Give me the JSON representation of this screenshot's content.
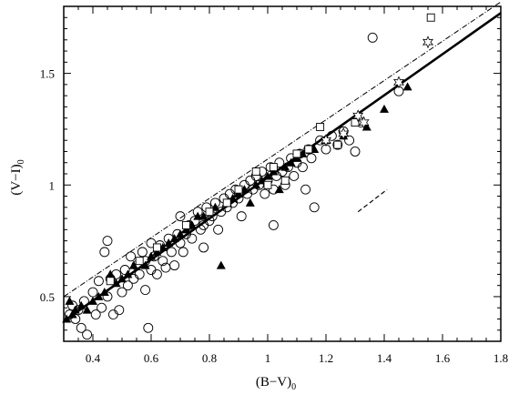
{
  "chart_data": {
    "type": "scatter",
    "title": "",
    "xlabel": "(B−V)",
    "xlabel_subscript": "0",
    "ylabel": "(V−I)",
    "ylabel_subscript": "0",
    "xlim": [
      0.3,
      1.8
    ],
    "ylim": [
      0.3,
      1.8
    ],
    "x_ticks": [
      0.4,
      0.6,
      0.8,
      1.0,
      1.2,
      1.4,
      1.6,
      1.8
    ],
    "x_tick_labels": [
      "0.4",
      "0.6",
      "0.8",
      "1",
      "1.2",
      "1.4",
      "1.6",
      "1.8"
    ],
    "y_ticks": [
      0.5,
      1.0,
      1.5
    ],
    "y_tick_labels": [
      "0.5",
      "1",
      "1.5"
    ],
    "grid": false,
    "legend": "none",
    "lines": [
      {
        "style": "solid-thick",
        "x": [
          0.3,
          1.8
        ],
        "y": [
          0.39,
          1.77
        ]
      },
      {
        "style": "dash-dot",
        "x": [
          0.3,
          1.8
        ],
        "y": [
          0.5,
          1.82
        ]
      },
      {
        "style": "dashed-short",
        "x": [
          1.31,
          1.41
        ],
        "y": [
          0.88,
          0.98
        ]
      }
    ],
    "series": [
      {
        "marker": "open-circle",
        "points": [
          [
            0.32,
            0.42
          ],
          [
            0.33,
            0.46
          ],
          [
            0.34,
            0.4
          ],
          [
            0.35,
            0.44
          ],
          [
            0.36,
            0.36
          ],
          [
            0.37,
            0.48
          ],
          [
            0.38,
            0.33
          ],
          [
            0.4,
            0.52
          ],
          [
            0.41,
            0.42
          ],
          [
            0.42,
            0.57
          ],
          [
            0.43,
            0.45
          ],
          [
            0.44,
            0.7
          ],
          [
            0.45,
            0.75
          ],
          [
            0.45,
            0.5
          ],
          [
            0.46,
            0.58
          ],
          [
            0.47,
            0.42
          ],
          [
            0.48,
            0.6
          ],
          [
            0.49,
            0.44
          ],
          [
            0.5,
            0.52
          ],
          [
            0.51,
            0.62
          ],
          [
            0.52,
            0.55
          ],
          [
            0.53,
            0.68
          ],
          [
            0.54,
            0.58
          ],
          [
            0.55,
            0.64
          ],
          [
            0.56,
            0.6
          ],
          [
            0.57,
            0.7
          ],
          [
            0.58,
            0.66
          ],
          [
            0.58,
            0.53
          ],
          [
            0.59,
            0.36
          ],
          [
            0.6,
            0.74
          ],
          [
            0.6,
            0.62
          ],
          [
            0.61,
            0.68
          ],
          [
            0.62,
            0.6
          ],
          [
            0.63,
            0.73
          ],
          [
            0.64,
            0.66
          ],
          [
            0.65,
            0.63
          ],
          [
            0.66,
            0.76
          ],
          [
            0.67,
            0.7
          ],
          [
            0.68,
            0.64
          ],
          [
            0.69,
            0.78
          ],
          [
            0.7,
            0.74
          ],
          [
            0.7,
            0.86
          ],
          [
            0.71,
            0.7
          ],
          [
            0.72,
            0.78
          ],
          [
            0.73,
            0.82
          ],
          [
            0.74,
            0.76
          ],
          [
            0.75,
            0.84
          ],
          [
            0.76,
            0.88
          ],
          [
            0.77,
            0.8
          ],
          [
            0.78,
            0.82
          ],
          [
            0.78,
            0.72
          ],
          [
            0.79,
            0.9
          ],
          [
            0.8,
            0.84
          ],
          [
            0.81,
            0.86
          ],
          [
            0.82,
            0.92
          ],
          [
            0.83,
            0.8
          ],
          [
            0.84,
            0.88
          ],
          [
            0.85,
            0.94
          ],
          [
            0.86,
            0.9
          ],
          [
            0.87,
            0.96
          ],
          [
            0.88,
            0.92
          ],
          [
            0.89,
            0.98
          ],
          [
            0.9,
            0.94
          ],
          [
            0.91,
            0.86
          ],
          [
            0.92,
            1.0
          ],
          [
            0.93,
            0.96
          ],
          [
            0.94,
            1.02
          ],
          [
            0.95,
            0.98
          ],
          [
            0.96,
            1.04
          ],
          [
            0.97,
            1.0
          ],
          [
            0.98,
            1.06
          ],
          [
            0.99,
            0.96
          ],
          [
            1.0,
            1.02
          ],
          [
            1.01,
            1.08
          ],
          [
            1.02,
            0.98
          ],
          [
            1.02,
            0.82
          ],
          [
            1.03,
            1.04
          ],
          [
            1.04,
            1.1
          ],
          [
            1.05,
            1.06
          ],
          [
            1.06,
            1.0
          ],
          [
            1.07,
            1.08
          ],
          [
            1.08,
            1.12
          ],
          [
            1.09,
            1.04
          ],
          [
            1.1,
            1.1
          ],
          [
            1.11,
            1.14
          ],
          [
            1.12,
            1.08
          ],
          [
            1.13,
            0.98
          ],
          [
            1.14,
            1.16
          ],
          [
            1.15,
            1.12
          ],
          [
            1.16,
            0.9
          ],
          [
            1.18,
            1.2
          ],
          [
            1.2,
            1.16
          ],
          [
            1.22,
            1.22
          ],
          [
            1.24,
            1.18
          ],
          [
            1.26,
            1.24
          ],
          [
            1.28,
            1.2
          ],
          [
            1.3,
            1.15
          ],
          [
            1.32,
            1.28
          ],
          [
            1.36,
            1.66
          ],
          [
            1.45,
            1.42
          ]
        ]
      },
      {
        "marker": "filled-triangle",
        "points": [
          [
            0.31,
            0.4
          ],
          [
            0.32,
            0.48
          ],
          [
            0.33,
            0.42
          ],
          [
            0.34,
            0.44
          ],
          [
            0.36,
            0.46
          ],
          [
            0.38,
            0.44
          ],
          [
            0.4,
            0.48
          ],
          [
            0.42,
            0.5
          ],
          [
            0.44,
            0.52
          ],
          [
            0.46,
            0.6
          ],
          [
            0.48,
            0.56
          ],
          [
            0.5,
            0.58
          ],
          [
            0.52,
            0.6
          ],
          [
            0.54,
            0.64
          ],
          [
            0.56,
            0.66
          ],
          [
            0.58,
            0.64
          ],
          [
            0.6,
            0.68
          ],
          [
            0.62,
            0.7
          ],
          [
            0.64,
            0.72
          ],
          [
            0.66,
            0.74
          ],
          [
            0.68,
            0.76
          ],
          [
            0.7,
            0.78
          ],
          [
            0.72,
            0.8
          ],
          [
            0.74,
            0.82
          ],
          [
            0.76,
            0.86
          ],
          [
            0.78,
            0.86
          ],
          [
            0.8,
            0.88
          ],
          [
            0.82,
            0.9
          ],
          [
            0.84,
            0.64
          ],
          [
            0.86,
            0.92
          ],
          [
            0.88,
            0.94
          ],
          [
            0.9,
            0.96
          ],
          [
            0.92,
            0.98
          ],
          [
            0.94,
            0.92
          ],
          [
            0.96,
            1.0
          ],
          [
            0.98,
            1.02
          ],
          [
            1.0,
            1.04
          ],
          [
            1.02,
            1.06
          ],
          [
            1.04,
            0.98
          ],
          [
            1.06,
            1.08
          ],
          [
            1.08,
            1.1
          ],
          [
            1.1,
            1.12
          ],
          [
            1.12,
            1.14
          ],
          [
            1.14,
            1.16
          ],
          [
            1.16,
            1.16
          ],
          [
            1.2,
            1.2
          ],
          [
            1.26,
            1.22
          ],
          [
            1.34,
            1.26
          ],
          [
            1.4,
            1.34
          ],
          [
            1.48,
            1.44
          ]
        ]
      },
      {
        "marker": "open-square",
        "points": [
          [
            0.46,
            0.57
          ],
          [
            0.56,
            0.66
          ],
          [
            0.62,
            0.72
          ],
          [
            0.72,
            0.82
          ],
          [
            0.8,
            0.88
          ],
          [
            0.86,
            0.92
          ],
          [
            0.9,
            0.98
          ],
          [
            0.96,
            1.06
          ],
          [
            1.0,
            1.0
          ],
          [
            1.02,
            1.08
          ],
          [
            1.06,
            1.02
          ],
          [
            1.1,
            1.14
          ],
          [
            1.14,
            1.16
          ],
          [
            1.18,
            1.26
          ],
          [
            1.24,
            1.18
          ],
          [
            1.3,
            1.28
          ],
          [
            1.56,
            1.75
          ]
        ]
      },
      {
        "marker": "open-star",
        "points": [
          [
            1.2,
            1.2
          ],
          [
            1.26,
            1.23
          ],
          [
            1.31,
            1.31
          ],
          [
            1.33,
            1.28
          ],
          [
            1.45,
            1.46
          ],
          [
            1.55,
            1.64
          ]
        ]
      }
    ]
  }
}
